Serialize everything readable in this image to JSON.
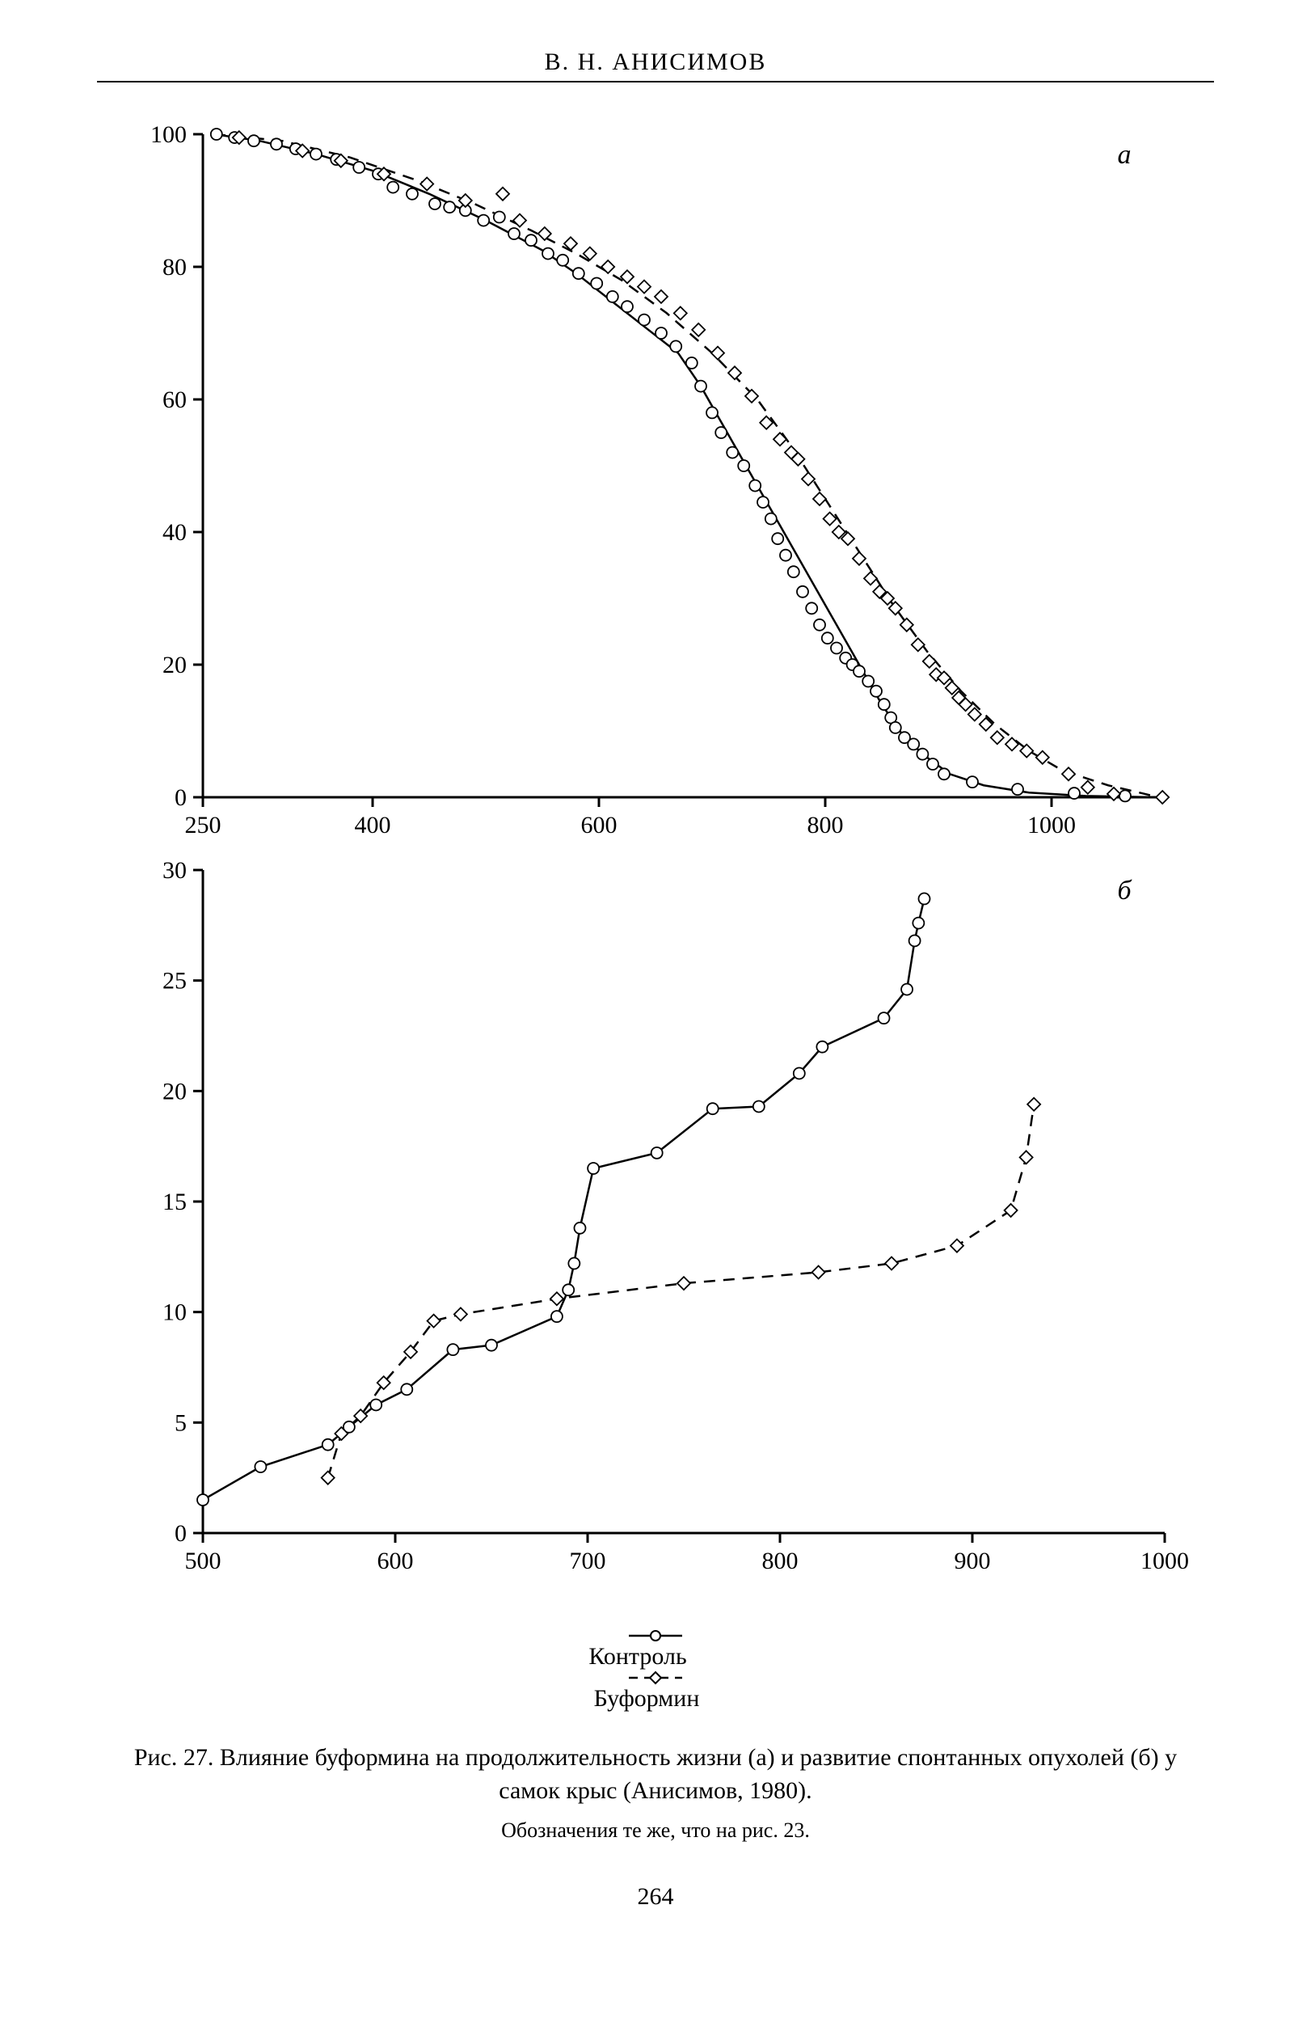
{
  "header": "В. Н. АНИСИМОВ",
  "page_number": "264",
  "legend": {
    "control": {
      "marker": "circle",
      "line": "solid",
      "label": "Контроль"
    },
    "buformin": {
      "marker": "diamond",
      "line": "dashed",
      "label": "Буформин"
    }
  },
  "caption": "Рис. 27. Влияние буформина на продолжительность жизни (а) и развитие спонтанных опухолей (б) у самок крыс (Анисимов, 1980).",
  "subcaption": "Обозначения те же, что на рис. 23.",
  "panel_a": {
    "type": "line+scatter",
    "label": "а",
    "label_style": "italic",
    "xlim": [
      250,
      1100
    ],
    "ylim": [
      0,
      100
    ],
    "xticks": [
      250,
      400,
      600,
      800,
      1000
    ],
    "yticks": [
      0,
      20,
      40,
      60,
      80,
      100
    ],
    "axis_color": "#000000",
    "background_color": "#ffffff",
    "tick_fontsize": 30,
    "line_width": 2.5,
    "marker_size": 7,
    "control_line": [
      [
        260,
        100
      ],
      [
        300,
        99
      ],
      [
        350,
        97
      ],
      [
        400,
        94.5
      ],
      [
        450,
        91
      ],
      [
        500,
        87
      ],
      [
        550,
        82.5
      ],
      [
        580,
        79
      ],
      [
        610,
        75
      ],
      [
        640,
        71
      ],
      [
        670,
        67
      ],
      [
        690,
        62
      ],
      [
        710,
        56
      ],
      [
        730,
        50
      ],
      [
        750,
        44
      ],
      [
        770,
        38
      ],
      [
        790,
        32
      ],
      [
        810,
        26
      ],
      [
        830,
        20
      ],
      [
        850,
        14
      ],
      [
        870,
        9
      ],
      [
        890,
        6
      ],
      [
        910,
        3.5
      ],
      [
        940,
        1.8
      ],
      [
        980,
        0.7
      ],
      [
        1030,
        0.2
      ],
      [
        1090,
        0
      ]
    ],
    "buformin_line": [
      [
        260,
        100
      ],
      [
        320,
        99
      ],
      [
        380,
        96.5
      ],
      [
        440,
        93
      ],
      [
        490,
        89.5
      ],
      [
        540,
        85.5
      ],
      [
        580,
        82
      ],
      [
        620,
        78
      ],
      [
        660,
        73
      ],
      [
        700,
        67
      ],
      [
        740,
        60
      ],
      [
        770,
        53
      ],
      [
        800,
        45
      ],
      [
        830,
        37
      ],
      [
        860,
        29
      ],
      [
        890,
        22
      ],
      [
        920,
        16
      ],
      [
        950,
        11
      ],
      [
        980,
        7
      ],
      [
        1010,
        4
      ],
      [
        1050,
        1.8
      ],
      [
        1095,
        0
      ]
    ],
    "control_points": [
      [
        262,
        100
      ],
      [
        278,
        99.5
      ],
      [
        295,
        99
      ],
      [
        315,
        98.5
      ],
      [
        332,
        97.8
      ],
      [
        350,
        97
      ],
      [
        368,
        96.2
      ],
      [
        388,
        95
      ],
      [
        405,
        94
      ],
      [
        418,
        92
      ],
      [
        435,
        91
      ],
      [
        455,
        89.5
      ],
      [
        468,
        89
      ],
      [
        482,
        88.5
      ],
      [
        498,
        87
      ],
      [
        512,
        87.5
      ],
      [
        525,
        85
      ],
      [
        540,
        84
      ],
      [
        555,
        82
      ],
      [
        568,
        81
      ],
      [
        582,
        79
      ],
      [
        598,
        77.5
      ],
      [
        612,
        75.5
      ],
      [
        625,
        74
      ],
      [
        640,
        72
      ],
      [
        655,
        70
      ],
      [
        668,
        68
      ],
      [
        682,
        65.5
      ],
      [
        690,
        62
      ],
      [
        700,
        58
      ],
      [
        708,
        55
      ],
      [
        718,
        52
      ],
      [
        728,
        50
      ],
      [
        738,
        47
      ],
      [
        745,
        44.5
      ],
      [
        752,
        42
      ],
      [
        758,
        39
      ],
      [
        765,
        36.5
      ],
      [
        772,
        34
      ],
      [
        780,
        31
      ],
      [
        788,
        28.5
      ],
      [
        795,
        26
      ],
      [
        802,
        24
      ],
      [
        810,
        22.5
      ],
      [
        818,
        21
      ],
      [
        824,
        20
      ],
      [
        830,
        19
      ],
      [
        838,
        17.5
      ],
      [
        845,
        16
      ],
      [
        852,
        14
      ],
      [
        858,
        12
      ],
      [
        862,
        10.5
      ],
      [
        870,
        9
      ],
      [
        878,
        8
      ],
      [
        886,
        6.5
      ],
      [
        895,
        5
      ],
      [
        905,
        3.5
      ],
      [
        930,
        2.3
      ],
      [
        970,
        1.2
      ],
      [
        1020,
        0.6
      ],
      [
        1065,
        0.2
      ]
    ],
    "buformin_points": [
      [
        282,
        99.5
      ],
      [
        338,
        97.5
      ],
      [
        372,
        96
      ],
      [
        410,
        94
      ],
      [
        448,
        92.5
      ],
      [
        482,
        90
      ],
      [
        515,
        91
      ],
      [
        530,
        87
      ],
      [
        552,
        85
      ],
      [
        575,
        83.5
      ],
      [
        592,
        82
      ],
      [
        608,
        80
      ],
      [
        625,
        78.5
      ],
      [
        640,
        77
      ],
      [
        655,
        75.5
      ],
      [
        672,
        73
      ],
      [
        688,
        70.5
      ],
      [
        705,
        67
      ],
      [
        720,
        64
      ],
      [
        735,
        60.5
      ],
      [
        748,
        56.5
      ],
      [
        760,
        54
      ],
      [
        770,
        52
      ],
      [
        776,
        51
      ],
      [
        785,
        48
      ],
      [
        795,
        45
      ],
      [
        804,
        42
      ],
      [
        812,
        40
      ],
      [
        820,
        39
      ],
      [
        830,
        36
      ],
      [
        840,
        33
      ],
      [
        848,
        31
      ],
      [
        855,
        30
      ],
      [
        862,
        28.5
      ],
      [
        872,
        26
      ],
      [
        882,
        23
      ],
      [
        892,
        20.5
      ],
      [
        898,
        18.5
      ],
      [
        905,
        18
      ],
      [
        912,
        16.5
      ],
      [
        918,
        15
      ],
      [
        924,
        14
      ],
      [
        932,
        12.5
      ],
      [
        942,
        11
      ],
      [
        952,
        9
      ],
      [
        965,
        8
      ],
      [
        978,
        7
      ],
      [
        992,
        6
      ],
      [
        1015,
        3.5
      ],
      [
        1032,
        1.5
      ],
      [
        1055,
        0.5
      ],
      [
        1098,
        0
      ]
    ]
  },
  "panel_b": {
    "type": "line+scatter",
    "label": "б",
    "label_style": "italic",
    "xlim": [
      500,
      1000
    ],
    "ylim": [
      0,
      30
    ],
    "xticks": [
      500,
      600,
      700,
      800,
      900,
      1000
    ],
    "yticks": [
      0,
      5,
      10,
      15,
      20,
      25,
      30
    ],
    "axis_color": "#000000",
    "background_color": "#ffffff",
    "tick_fontsize": 30,
    "line_width": 2.5,
    "marker_size": 7,
    "control_series": [
      [
        500,
        1.5
      ],
      [
        530,
        3
      ],
      [
        565,
        4
      ],
      [
        576,
        4.8
      ],
      [
        590,
        5.8
      ],
      [
        606,
        6.5
      ],
      [
        630,
        8.3
      ],
      [
        650,
        8.5
      ],
      [
        684,
        9.8
      ],
      [
        690,
        11
      ],
      [
        693,
        12.2
      ],
      [
        696,
        13.8
      ],
      [
        703,
        16.5
      ],
      [
        736,
        17.2
      ],
      [
        765,
        19.2
      ],
      [
        789,
        19.3
      ],
      [
        810,
        20.8
      ],
      [
        822,
        22
      ],
      [
        854,
        23.3
      ],
      [
        866,
        24.6
      ],
      [
        870,
        26.8
      ],
      [
        872,
        27.6
      ],
      [
        875,
        28.7
      ]
    ],
    "buformin_series": [
      [
        565,
        2.5
      ],
      [
        572,
        4.5
      ],
      [
        582,
        5.3
      ],
      [
        594,
        6.8
      ],
      [
        608,
        8.2
      ],
      [
        620,
        9.6
      ],
      [
        634,
        9.9
      ],
      [
        684,
        10.6
      ],
      [
        750,
        11.3
      ],
      [
        820,
        11.8
      ],
      [
        858,
        12.2
      ],
      [
        892,
        13
      ],
      [
        920,
        14.6
      ],
      [
        928,
        17
      ],
      [
        932,
        19.4
      ]
    ]
  },
  "colors": {
    "stroke": "#000000",
    "marker_fill": "#ffffff",
    "marker_stroke": "#000000"
  }
}
